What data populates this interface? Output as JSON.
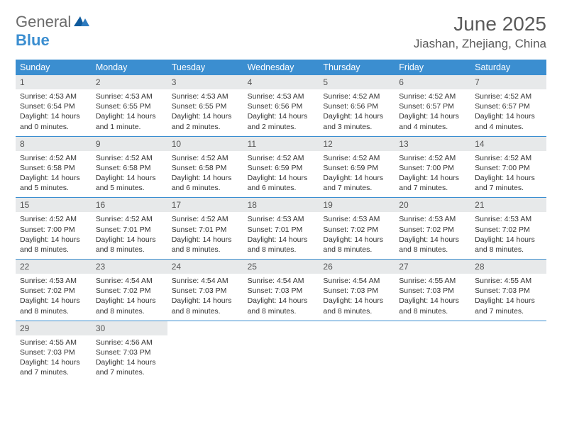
{
  "logo": {
    "general": "General",
    "blue": "Blue"
  },
  "title": "June 2025",
  "location": "Jiashan, Zhejiang, China",
  "colors": {
    "header_bg": "#3b8ed0",
    "daynum_bg": "#e7e9ea",
    "week_border": "#3b8ed0",
    "text": "#333333",
    "title_text": "#5a5a5a",
    "logo_gray": "#6b6b6b",
    "logo_blue": "#3b8ed0"
  },
  "dow": [
    "Sunday",
    "Monday",
    "Tuesday",
    "Wednesday",
    "Thursday",
    "Friday",
    "Saturday"
  ],
  "weeks": [
    [
      {
        "n": "1",
        "sr": "4:53 AM",
        "ss": "6:54 PM",
        "dl": "14 hours and 0 minutes."
      },
      {
        "n": "2",
        "sr": "4:53 AM",
        "ss": "6:55 PM",
        "dl": "14 hours and 1 minute."
      },
      {
        "n": "3",
        "sr": "4:53 AM",
        "ss": "6:55 PM",
        "dl": "14 hours and 2 minutes."
      },
      {
        "n": "4",
        "sr": "4:53 AM",
        "ss": "6:56 PM",
        "dl": "14 hours and 2 minutes."
      },
      {
        "n": "5",
        "sr": "4:52 AM",
        "ss": "6:56 PM",
        "dl": "14 hours and 3 minutes."
      },
      {
        "n": "6",
        "sr": "4:52 AM",
        "ss": "6:57 PM",
        "dl": "14 hours and 4 minutes."
      },
      {
        "n": "7",
        "sr": "4:52 AM",
        "ss": "6:57 PM",
        "dl": "14 hours and 4 minutes."
      }
    ],
    [
      {
        "n": "8",
        "sr": "4:52 AM",
        "ss": "6:58 PM",
        "dl": "14 hours and 5 minutes."
      },
      {
        "n": "9",
        "sr": "4:52 AM",
        "ss": "6:58 PM",
        "dl": "14 hours and 5 minutes."
      },
      {
        "n": "10",
        "sr": "4:52 AM",
        "ss": "6:58 PM",
        "dl": "14 hours and 6 minutes."
      },
      {
        "n": "11",
        "sr": "4:52 AM",
        "ss": "6:59 PM",
        "dl": "14 hours and 6 minutes."
      },
      {
        "n": "12",
        "sr": "4:52 AM",
        "ss": "6:59 PM",
        "dl": "14 hours and 7 minutes."
      },
      {
        "n": "13",
        "sr": "4:52 AM",
        "ss": "7:00 PM",
        "dl": "14 hours and 7 minutes."
      },
      {
        "n": "14",
        "sr": "4:52 AM",
        "ss": "7:00 PM",
        "dl": "14 hours and 7 minutes."
      }
    ],
    [
      {
        "n": "15",
        "sr": "4:52 AM",
        "ss": "7:00 PM",
        "dl": "14 hours and 8 minutes."
      },
      {
        "n": "16",
        "sr": "4:52 AM",
        "ss": "7:01 PM",
        "dl": "14 hours and 8 minutes."
      },
      {
        "n": "17",
        "sr": "4:52 AM",
        "ss": "7:01 PM",
        "dl": "14 hours and 8 minutes."
      },
      {
        "n": "18",
        "sr": "4:53 AM",
        "ss": "7:01 PM",
        "dl": "14 hours and 8 minutes."
      },
      {
        "n": "19",
        "sr": "4:53 AM",
        "ss": "7:02 PM",
        "dl": "14 hours and 8 minutes."
      },
      {
        "n": "20",
        "sr": "4:53 AM",
        "ss": "7:02 PM",
        "dl": "14 hours and 8 minutes."
      },
      {
        "n": "21",
        "sr": "4:53 AM",
        "ss": "7:02 PM",
        "dl": "14 hours and 8 minutes."
      }
    ],
    [
      {
        "n": "22",
        "sr": "4:53 AM",
        "ss": "7:02 PM",
        "dl": "14 hours and 8 minutes."
      },
      {
        "n": "23",
        "sr": "4:54 AM",
        "ss": "7:02 PM",
        "dl": "14 hours and 8 minutes."
      },
      {
        "n": "24",
        "sr": "4:54 AM",
        "ss": "7:03 PM",
        "dl": "14 hours and 8 minutes."
      },
      {
        "n": "25",
        "sr": "4:54 AM",
        "ss": "7:03 PM",
        "dl": "14 hours and 8 minutes."
      },
      {
        "n": "26",
        "sr": "4:54 AM",
        "ss": "7:03 PM",
        "dl": "14 hours and 8 minutes."
      },
      {
        "n": "27",
        "sr": "4:55 AM",
        "ss": "7:03 PM",
        "dl": "14 hours and 8 minutes."
      },
      {
        "n": "28",
        "sr": "4:55 AM",
        "ss": "7:03 PM",
        "dl": "14 hours and 7 minutes."
      }
    ],
    [
      {
        "n": "29",
        "sr": "4:55 AM",
        "ss": "7:03 PM",
        "dl": "14 hours and 7 minutes."
      },
      {
        "n": "30",
        "sr": "4:56 AM",
        "ss": "7:03 PM",
        "dl": "14 hours and 7 minutes."
      },
      null,
      null,
      null,
      null,
      null
    ]
  ],
  "labels": {
    "sunrise": "Sunrise: ",
    "sunset": "Sunset: ",
    "daylight": "Daylight: "
  }
}
